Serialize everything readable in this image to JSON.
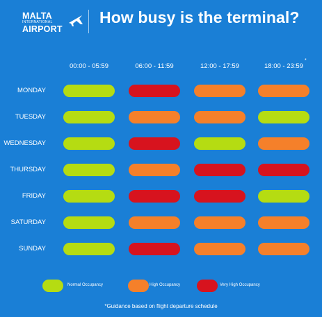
{
  "header": {
    "logo": {
      "line1": "MALTA",
      "line2": "INTERNATIONAL",
      "line3": "AIRPORT"
    },
    "title": "How busy is the terminal?"
  },
  "colors": {
    "background": "#1a7fd6",
    "normal": "#b5dc12",
    "high": "#f5802a",
    "very_high": "#d7131e"
  },
  "legend": [
    {
      "level": "normal",
      "label": "Normal Occupancy"
    },
    {
      "level": "high",
      "label": "High Occupancy"
    },
    {
      "level": "very_high",
      "label": "Very High Occupancy"
    }
  ],
  "footnote_marker": "*",
  "footnote": "*Guidance based on flight departure schedule",
  "chart_data": {
    "type": "heatmap",
    "title": "How busy is the terminal?",
    "columns": [
      "00:00 - 05:59",
      "06:00 - 11:59",
      "12:00 - 17:59",
      "18:00 - 23:59"
    ],
    "rows": [
      {
        "day": "MONDAY",
        "levels": [
          "normal",
          "very_high",
          "high",
          "high"
        ]
      },
      {
        "day": "TUESDAY",
        "levels": [
          "normal",
          "high",
          "high",
          "normal"
        ]
      },
      {
        "day": "WEDNESDAY",
        "levels": [
          "normal",
          "very_high",
          "normal",
          "high"
        ]
      },
      {
        "day": "THURSDAY",
        "levels": [
          "normal",
          "high",
          "very_high",
          "very_high"
        ]
      },
      {
        "day": "FRIDAY",
        "levels": [
          "normal",
          "very_high",
          "very_high",
          "normal"
        ]
      },
      {
        "day": "SATURDAY",
        "levels": [
          "normal",
          "high",
          "high",
          "high"
        ]
      },
      {
        "day": "SUNDAY",
        "levels": [
          "normal",
          "very_high",
          "high",
          "high"
        ]
      }
    ]
  }
}
